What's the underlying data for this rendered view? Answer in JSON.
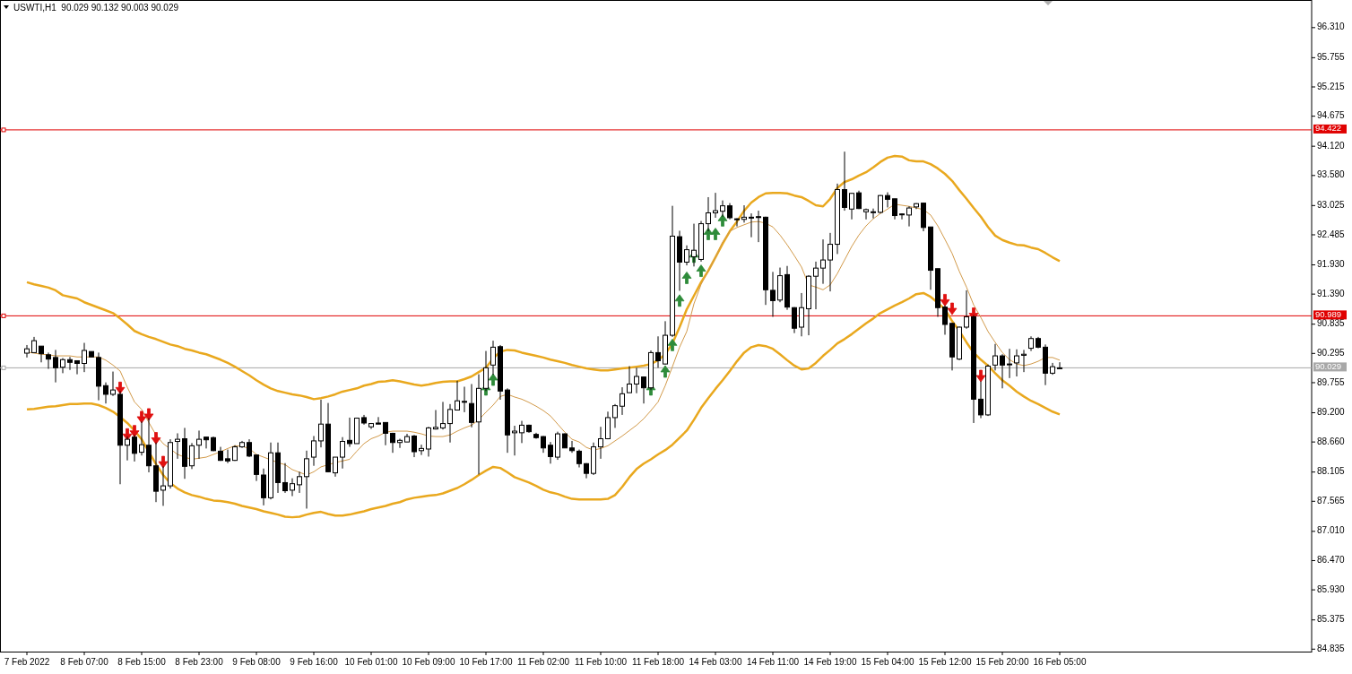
{
  "chart_data": {
    "type": "candlestick",
    "title": "USWTI,H1  90.029 90.132 90.003 90.029",
    "categories": [
      "7 Feb 2022",
      null,
      null,
      null,
      null,
      null,
      null,
      null,
      "8 Feb 07:00",
      null,
      null,
      null,
      null,
      null,
      null,
      null,
      "8 Feb 15:00",
      null,
      null,
      null,
      null,
      null,
      null,
      null,
      "8 Feb 23:00",
      null,
      null,
      null,
      null,
      null,
      null,
      null,
      "9 Feb 08:00",
      null,
      null,
      null,
      null,
      null,
      null,
      null,
      "9 Feb 16:00",
      null,
      null,
      null,
      null,
      null,
      null,
      null,
      "10 Feb 01:00",
      null,
      null,
      null,
      null,
      null,
      null,
      null,
      "10 Feb 09:00",
      null,
      null,
      null,
      null,
      null,
      null,
      null,
      "10 Feb 17:00",
      null,
      null,
      null,
      null,
      null,
      null,
      null,
      "11 Feb 02:00",
      null,
      null,
      null,
      null,
      null,
      null,
      null,
      "11 Feb 10:00",
      null,
      null,
      null,
      null,
      null,
      null,
      null,
      "11 Feb 18:00",
      null,
      null,
      null,
      null,
      null,
      null,
      null,
      "14 Feb 03:00",
      null,
      null,
      null,
      null,
      null,
      null,
      null,
      "14 Feb 11:00",
      null,
      null,
      null,
      null,
      null,
      null,
      null,
      "14 Feb 19:00",
      null,
      null,
      null,
      null,
      null,
      null,
      null,
      "15 Feb 04:00",
      null,
      null,
      null,
      null,
      null,
      null,
      null,
      "15 Feb 12:00",
      null,
      null,
      null,
      null,
      null,
      null,
      null,
      "15 Feb 20:00",
      null,
      null,
      null,
      null,
      null,
      null,
      null,
      "16 Feb 05:00"
    ],
    "ohlc": [
      [
        90.3,
        90.45,
        90.22,
        90.38
      ],
      [
        90.31,
        90.6,
        90.31,
        90.53
      ],
      [
        90.43,
        90.43,
        90.13,
        90.29
      ],
      [
        90.27,
        90.31,
        90.01,
        90.19
      ],
      [
        90.22,
        90.36,
        89.76,
        90.03
      ],
      [
        90.04,
        90.21,
        89.93,
        90.18
      ],
      [
        90.18,
        90.23,
        89.99,
        90.13
      ],
      [
        90.16,
        90.16,
        89.91,
        90.11
      ],
      [
        90.11,
        90.49,
        89.95,
        90.35
      ],
      [
        90.33,
        90.33,
        90.23,
        90.23
      ],
      [
        90.22,
        90.31,
        89.43,
        89.69
      ],
      [
        89.7,
        89.76,
        89.37,
        89.54
      ],
      [
        89.54,
        89.96,
        89.51,
        89.62
      ],
      [
        89.54,
        89.6,
        87.88,
        88.6
      ],
      [
        88.6,
        88.76,
        88.32,
        88.71
      ],
      [
        88.75,
        88.79,
        88.3,
        88.45
      ],
      [
        88.47,
        89.04,
        88.41,
        88.61
      ],
      [
        88.6,
        89.1,
        88.1,
        88.22
      ],
      [
        88.22,
        88.65,
        87.55,
        87.75
      ],
      [
        87.77,
        88.21,
        87.48,
        87.85
      ],
      [
        87.85,
        88.71,
        87.8,
        88.65
      ],
      [
        88.67,
        88.82,
        88.35,
        88.71
      ],
      [
        88.72,
        88.92,
        87.98,
        88.21
      ],
      [
        88.22,
        88.64,
        88.16,
        88.59
      ],
      [
        88.6,
        88.87,
        88.35,
        88.71
      ],
      [
        88.75,
        88.75,
        88.54,
        88.7
      ],
      [
        88.74,
        88.76,
        88.49,
        88.5
      ],
      [
        88.49,
        88.57,
        88.31,
        88.32
      ],
      [
        88.35,
        88.52,
        88.27,
        88.31
      ],
      [
        88.32,
        88.6,
        88.31,
        88.57
      ],
      [
        88.57,
        88.68,
        88.55,
        88.65
      ],
      [
        88.65,
        88.71,
        88.38,
        88.4
      ],
      [
        88.42,
        88.42,
        87.94,
        88.06
      ],
      [
        88.05,
        88.17,
        87.49,
        87.63
      ],
      [
        87.63,
        88.65,
        87.6,
        88.46
      ],
      [
        88.46,
        88.65,
        87.72,
        87.91
      ],
      [
        87.91,
        88.27,
        87.72,
        87.76
      ],
      [
        87.77,
        87.99,
        87.66,
        87.89
      ],
      [
        87.87,
        88.11,
        87.72,
        88.02
      ],
      [
        88.02,
        88.5,
        87.43,
        88.35
      ],
      [
        88.38,
        88.77,
        88.22,
        88.68
      ],
      [
        88.68,
        89.44,
        88.56,
        88.99
      ],
      [
        88.99,
        89.38,
        88.1,
        88.11
      ],
      [
        88.09,
        88.38,
        88.02,
        88.38
      ],
      [
        88.38,
        88.75,
        88.17,
        88.67
      ],
      [
        88.69,
        89.11,
        88.57,
        88.63
      ],
      [
        88.63,
        89.11,
        88.63,
        89.1
      ],
      [
        89.11,
        89.16,
        88.98,
        89.01
      ],
      [
        88.94,
        89.01,
        88.9,
        89.0
      ],
      [
        89.01,
        89.12,
        88.99,
        88.99
      ],
      [
        89.02,
        89.02,
        88.6,
        88.82
      ],
      [
        88.82,
        88.83,
        88.46,
        88.65
      ],
      [
        88.65,
        88.72,
        88.55,
        88.69
      ],
      [
        88.66,
        88.81,
        88.66,
        88.76
      ],
      [
        88.77,
        88.79,
        88.38,
        88.48
      ],
      [
        88.5,
        88.61,
        88.42,
        88.54
      ],
      [
        88.53,
        88.94,
        88.39,
        88.92
      ],
      [
        88.9,
        89.25,
        88.89,
        88.93
      ],
      [
        88.92,
        89.4,
        88.89,
        89.0
      ],
      [
        89.0,
        89.36,
        88.65,
        89.26
      ],
      [
        89.25,
        89.79,
        89.25,
        89.42
      ],
      [
        89.4,
        89.68,
        89.21,
        89.41
      ],
      [
        89.37,
        89.73,
        88.93,
        89.02
      ],
      [
        89.03,
        89.91,
        88.06,
        89.65
      ],
      [
        89.65,
        90.34,
        89.6,
        90.03
      ],
      [
        90.08,
        90.53,
        89.9,
        90.41
      ],
      [
        90.42,
        90.45,
        89.44,
        89.6
      ],
      [
        89.62,
        89.65,
        88.46,
        88.79
      ],
      [
        88.83,
        88.96,
        88.41,
        88.86
      ],
      [
        88.83,
        89.05,
        88.64,
        88.97
      ],
      [
        88.97,
        88.98,
        88.83,
        88.85
      ],
      [
        88.8,
        88.83,
        88.72,
        88.74
      ],
      [
        88.76,
        88.77,
        88.46,
        88.55
      ],
      [
        88.6,
        88.66,
        88.26,
        88.39
      ],
      [
        88.38,
        88.85,
        88.33,
        88.81
      ],
      [
        88.81,
        88.82,
        88.55,
        88.55
      ],
      [
        88.55,
        88.68,
        88.46,
        88.5
      ],
      [
        88.49,
        88.52,
        88.19,
        88.26
      ],
      [
        88.26,
        88.27,
        87.99,
        88.08
      ],
      [
        88.08,
        88.65,
        88.05,
        88.57
      ],
      [
        88.57,
        88.94,
        88.35,
        88.72
      ],
      [
        88.72,
        89.22,
        88.71,
        89.11
      ],
      [
        89.11,
        89.36,
        88.92,
        89.33
      ],
      [
        89.32,
        89.67,
        89.16,
        89.55
      ],
      [
        89.57,
        90.06,
        89.57,
        89.73
      ],
      [
        89.73,
        90.03,
        89.56,
        89.87
      ],
      [
        89.86,
        89.87,
        89.37,
        89.66
      ],
      [
        89.66,
        90.35,
        89.62,
        90.31
      ],
      [
        90.31,
        90.61,
        90.03,
        90.16
      ],
      [
        90.1,
        90.89,
        90.09,
        90.63
      ],
      [
        90.63,
        93.02,
        90.6,
        92.46
      ],
      [
        92.45,
        92.56,
        91.45,
        91.98
      ],
      [
        91.98,
        92.29,
        91.92,
        92.21
      ],
      [
        92.08,
        92.69,
        91.9,
        92.2
      ],
      [
        92.03,
        92.74,
        91.99,
        92.69
      ],
      [
        92.69,
        93.18,
        92.55,
        92.89
      ],
      [
        92.89,
        93.26,
        92.8,
        92.93
      ],
      [
        92.92,
        93.12,
        92.82,
        93.02
      ],
      [
        93.02,
        93.07,
        92.77,
        92.8
      ],
      [
        92.78,
        92.79,
        92.64,
        92.77
      ],
      [
        92.77,
        93.03,
        92.71,
        92.81
      ],
      [
        92.81,
        92.88,
        92.44,
        92.8
      ],
      [
        92.82,
        92.93,
        92.35,
        92.81
      ],
      [
        92.81,
        92.82,
        91.19,
        91.47
      ],
      [
        91.46,
        91.8,
        90.97,
        91.27
      ],
      [
        91.28,
        91.88,
        91.24,
        91.73
      ],
      [
        91.75,
        91.91,
        91.1,
        91.15
      ],
      [
        91.14,
        91.15,
        90.67,
        90.76
      ],
      [
        90.78,
        91.41,
        90.61,
        91.14
      ],
      [
        91.12,
        91.74,
        90.63,
        91.72
      ],
      [
        91.72,
        91.99,
        91.11,
        91.87
      ],
      [
        91.87,
        92.4,
        91.58,
        92.02
      ],
      [
        92.02,
        92.52,
        91.44,
        92.31
      ],
      [
        92.31,
        93.43,
        92.13,
        93.32
      ],
      [
        93.32,
        94.02,
        92.93,
        92.99
      ],
      [
        92.96,
        93.26,
        92.77,
        93.25
      ],
      [
        93.26,
        93.3,
        92.96,
        92.97
      ],
      [
        92.91,
        92.97,
        92.77,
        92.95
      ],
      [
        92.9,
        92.97,
        92.79,
        92.91
      ],
      [
        92.9,
        93.22,
        92.88,
        93.21
      ],
      [
        93.21,
        93.27,
        92.99,
        93.14
      ],
      [
        93.15,
        93.15,
        92.77,
        92.84
      ],
      [
        92.87,
        92.88,
        92.77,
        92.86
      ],
      [
        92.85,
        93.01,
        92.64,
        92.98
      ],
      [
        93.0,
        93.07,
        92.96,
        93.06
      ],
      [
        93.07,
        93.08,
        92.55,
        92.62
      ],
      [
        92.63,
        92.63,
        91.47,
        91.83
      ],
      [
        91.86,
        91.86,
        90.97,
        91.14
      ],
      [
        91.15,
        91.18,
        90.64,
        90.83
      ],
      [
        90.85,
        90.86,
        89.98,
        90.23
      ],
      [
        90.19,
        90.79,
        90.17,
        90.78
      ],
      [
        90.78,
        91.46,
        90.75,
        90.97
      ],
      [
        90.97,
        91.0,
        89.01,
        89.45
      ],
      [
        89.45,
        89.78,
        89.1,
        89.16
      ],
      [
        89.16,
        90.09,
        89.14,
        90.06
      ],
      [
        90.08,
        90.47,
        89.98,
        90.25
      ],
      [
        90.25,
        90.28,
        89.65,
        90.08
      ],
      [
        90.1,
        90.38,
        89.84,
        90.1
      ],
      [
        90.12,
        90.37,
        89.87,
        90.25
      ],
      [
        90.26,
        90.36,
        89.95,
        90.28
      ],
      [
        90.39,
        90.61,
        90.34,
        90.57
      ],
      [
        90.57,
        90.6,
        90.39,
        90.41
      ],
      [
        90.41,
        90.46,
        89.71,
        89.93
      ],
      [
        89.93,
        90.12,
        89.9,
        90.05
      ],
      [
        90.029,
        90.132,
        90.003,
        90.029
      ]
    ],
    "series": [
      {
        "type": "line",
        "color": "#e9a81e",
        "values": [
          91.61,
          91.57,
          91.54,
          91.51,
          91.46,
          91.37,
          91.34,
          91.31,
          91.24,
          91.19,
          91.14,
          91.09,
          91.04,
          90.94,
          90.83,
          90.71,
          90.65,
          90.6,
          90.56,
          90.51,
          90.46,
          90.43,
          90.38,
          90.35,
          90.31,
          90.28,
          90.23,
          90.18,
          90.12,
          90.05,
          89.97,
          89.89,
          89.8,
          89.72,
          89.65,
          89.6,
          89.57,
          89.54,
          89.52,
          89.49,
          89.45,
          89.47,
          89.5,
          89.54,
          89.59,
          89.62,
          89.65,
          89.7,
          89.73,
          89.77,
          89.78,
          89.8,
          89.78,
          89.75,
          89.72,
          89.7,
          89.72,
          89.75,
          89.77,
          89.78,
          89.78,
          89.82,
          89.87,
          89.95,
          90.03,
          90.2,
          90.33,
          90.36,
          90.35,
          90.31,
          90.28,
          90.25,
          90.22,
          90.18,
          90.15,
          90.12,
          90.08,
          90.05,
          90.02,
          90.0,
          89.98,
          89.98,
          90.0,
          90.02,
          90.03,
          90.05,
          90.07,
          90.1,
          90.17,
          90.28,
          90.48,
          90.78,
          91.11,
          91.36,
          91.61,
          91.82,
          92.07,
          92.32,
          92.55,
          92.73,
          92.93,
          93.08,
          93.18,
          93.25,
          93.26,
          93.26,
          93.25,
          93.21,
          93.18,
          93.11,
          93.03,
          93.01,
          93.15,
          93.35,
          93.46,
          93.51,
          93.58,
          93.64,
          93.73,
          93.83,
          93.91,
          93.94,
          93.93,
          93.86,
          93.84,
          93.84,
          93.79,
          93.71,
          93.61,
          93.48,
          93.31,
          93.15,
          92.98,
          92.82,
          92.63,
          92.47,
          92.39,
          92.34,
          92.3,
          92.29,
          92.25,
          92.22,
          92.15,
          92.07,
          92.0
        ]
      },
      {
        "type": "line",
        "color": "#d29a4a",
        "values": [
          90.32,
          90.3,
          90.28,
          90.27,
          90.25,
          90.25,
          90.25,
          90.23,
          90.23,
          90.23,
          90.23,
          90.17,
          90.08,
          89.97,
          89.67,
          89.4,
          89.26,
          89.02,
          88.79,
          88.63,
          88.53,
          88.43,
          88.38,
          88.34,
          88.36,
          88.38,
          88.43,
          88.48,
          88.54,
          88.59,
          88.58,
          88.54,
          88.43,
          88.38,
          88.33,
          88.28,
          88.24,
          88.15,
          88.1,
          88.05,
          88.11,
          88.2,
          88.24,
          88.28,
          88.31,
          88.34,
          88.49,
          88.63,
          88.72,
          88.77,
          88.84,
          88.86,
          88.86,
          88.86,
          88.84,
          88.81,
          88.77,
          88.76,
          88.76,
          88.79,
          88.86,
          88.92,
          88.97,
          89.07,
          89.21,
          89.34,
          89.5,
          89.54,
          89.49,
          89.45,
          89.39,
          89.32,
          89.24,
          89.14,
          88.99,
          88.84,
          88.71,
          88.66,
          88.56,
          88.51,
          88.54,
          88.59,
          88.68,
          88.77,
          88.87,
          88.97,
          89.09,
          89.24,
          89.4,
          89.7,
          90.05,
          90.41,
          90.7,
          91.21,
          91.57,
          91.82,
          92.07,
          92.35,
          92.55,
          92.62,
          92.67,
          92.72,
          92.73,
          92.7,
          92.63,
          92.48,
          92.3,
          92.1,
          91.89,
          91.56,
          91.52,
          91.47,
          91.56,
          91.77,
          92.02,
          92.27,
          92.48,
          92.65,
          92.78,
          92.88,
          92.96,
          93.05,
          93.03,
          93.01,
          92.98,
          92.95,
          92.85,
          92.65,
          92.4,
          92.14,
          91.81,
          91.52,
          91.19,
          90.96,
          90.7,
          90.5,
          90.31,
          90.18,
          90.1,
          90.07,
          90.1,
          90.15,
          90.22,
          90.22,
          90.17
        ]
      },
      {
        "type": "line",
        "color": "#e9a81e",
        "values": [
          89.26,
          89.27,
          89.29,
          89.31,
          89.32,
          89.34,
          89.36,
          89.36,
          89.37,
          89.37,
          89.34,
          89.29,
          89.22,
          89.12,
          89.01,
          88.87,
          88.71,
          88.48,
          88.25,
          88.05,
          87.9,
          87.8,
          87.73,
          87.68,
          87.65,
          87.61,
          87.58,
          87.57,
          87.55,
          87.52,
          87.48,
          87.45,
          87.42,
          87.38,
          87.35,
          87.32,
          87.28,
          87.27,
          87.28,
          87.32,
          87.35,
          87.37,
          87.33,
          87.3,
          87.3,
          87.32,
          87.35,
          87.38,
          87.42,
          87.45,
          87.48,
          87.52,
          87.55,
          87.6,
          87.63,
          87.65,
          87.67,
          87.68,
          87.71,
          87.76,
          87.81,
          87.88,
          87.96,
          88.05,
          88.13,
          88.2,
          88.18,
          88.1,
          88.01,
          87.96,
          87.91,
          87.85,
          87.78,
          87.73,
          87.7,
          87.65,
          87.61,
          87.6,
          87.6,
          87.6,
          87.6,
          87.61,
          87.68,
          87.83,
          88.01,
          88.16,
          88.26,
          88.34,
          88.43,
          88.51,
          88.61,
          88.74,
          88.87,
          89.07,
          89.29,
          89.47,
          89.64,
          89.8,
          89.97,
          90.15,
          90.31,
          90.41,
          90.45,
          90.43,
          90.38,
          90.28,
          90.17,
          90.07,
          90.0,
          90.02,
          90.12,
          90.25,
          90.36,
          90.48,
          90.56,
          90.65,
          90.75,
          90.85,
          90.94,
          91.04,
          91.11,
          91.18,
          91.24,
          91.31,
          91.39,
          91.41,
          91.34,
          91.23,
          91.11,
          90.89,
          90.71,
          90.5,
          90.31,
          90.18,
          90.07,
          89.93,
          89.8,
          89.7,
          89.59,
          89.5,
          89.42,
          89.36,
          89.29,
          89.22,
          89.17
        ]
      },
      {
        "type": "scatter",
        "color": "#e01010",
        "marker": "triangle",
        "values": [
          null,
          null,
          null,
          null,
          null,
          null,
          null,
          null,
          null,
          null,
          null,
          null,
          null,
          89.65,
          88.79,
          88.85,
          89.11,
          89.16,
          88.72,
          88.28,
          null,
          null,
          null,
          null,
          null,
          null,
          null,
          null,
          null,
          null,
          null,
          null,
          null,
          null,
          null,
          null,
          null,
          null,
          null,
          null,
          null,
          null,
          null,
          null,
          null,
          null,
          null,
          null,
          null,
          null,
          null,
          null,
          null,
          null,
          null,
          null,
          null,
          null,
          null,
          null,
          null,
          null,
          null,
          null,
          null,
          null,
          null,
          null,
          null,
          null,
          null,
          null,
          null,
          null,
          null,
          null,
          null,
          null,
          null,
          null,
          null,
          null,
          null,
          null,
          null,
          null,
          null,
          null,
          null,
          null,
          null,
          null,
          null,
          null,
          null,
          null,
          null,
          null,
          null,
          null,
          null,
          null,
          null,
          null,
          null,
          null,
          null,
          null,
          null,
          null,
          null,
          null,
          null,
          null,
          null,
          null,
          null,
          null,
          null,
          null,
          null,
          null,
          null,
          null,
          null,
          null,
          null,
          null,
          91.27,
          91.11,
          null,
          null,
          91.02,
          89.87,
          null,
          null,
          null,
          null,
          null,
          null,
          null,
          null,
          null,
          null,
          null
        ]
      },
      {
        "type": "scatter",
        "color": "#2e8b3a",
        "marker": "triangle",
        "values": [
          null,
          null,
          null,
          null,
          null,
          null,
          null,
          null,
          null,
          null,
          null,
          null,
          null,
          null,
          null,
          null,
          null,
          null,
          null,
          null,
          null,
          null,
          null,
          null,
          null,
          null,
          null,
          null,
          null,
          null,
          null,
          null,
          null,
          null,
          null,
          null,
          null,
          null,
          null,
          null,
          null,
          null,
          null,
          null,
          null,
          null,
          null,
          null,
          null,
          null,
          null,
          null,
          null,
          null,
          null,
          null,
          null,
          null,
          null,
          null,
          null,
          null,
          null,
          null,
          89.64,
          89.82,
          null,
          null,
          null,
          null,
          null,
          null,
          null,
          null,
          null,
          null,
          null,
          null,
          null,
          null,
          null,
          null,
          null,
          null,
          null,
          null,
          null,
          89.64,
          null,
          89.97,
          90.46,
          91.28,
          91.7,
          92.09,
          91.83,
          92.51,
          92.51,
          92.76,
          null,
          null,
          null,
          null,
          null,
          null,
          null,
          null,
          null,
          null,
          null,
          null,
          null,
          null,
          null,
          null,
          null,
          null,
          null,
          null,
          null,
          null,
          null,
          null,
          null,
          null,
          null,
          null,
          null,
          null,
          null,
          null,
          null,
          null,
          null,
          null,
          null,
          null,
          null,
          null,
          null,
          null,
          null,
          null,
          null,
          null,
          null
        ]
      }
    ],
    "ylim": [
      84.79,
      96.82
    ],
    "yticks": [
      {
        "value": 96.31,
        "label": "96.310"
      },
      95.755,
      95.215,
      94.675,
      {
        "value": 94.12,
        "label": "94.120"
      },
      {
        "value": 93.58,
        "label": "93.580"
      },
      93.025,
      92.485,
      {
        "value": 91.93,
        "label": "91.930"
      },
      {
        "value": 91.39,
        "label": "91.390"
      },
      90.835,
      90.295,
      89.755,
      {
        "value": 89.2,
        "label": "89.200"
      },
      {
        "value": 88.66,
        "label": "88.660"
      },
      88.105,
      87.565,
      {
        "value": 87.01,
        "label": "87.010"
      },
      {
        "value": 86.47,
        "label": "86.470"
      },
      {
        "value": 85.93,
        "label": "85.930"
      },
      85.375,
      84.835
    ],
    "ref_lines": [
      {
        "axis": "y",
        "value": 94.422,
        "label": "94.422",
        "color": "#e00000"
      },
      {
        "axis": "y",
        "value": 90.989,
        "label": "90.989",
        "color": "#e00000"
      },
      {
        "axis": "y",
        "value": 90.029,
        "label": "90.029",
        "color": "#a8a8a8"
      }
    ]
  }
}
